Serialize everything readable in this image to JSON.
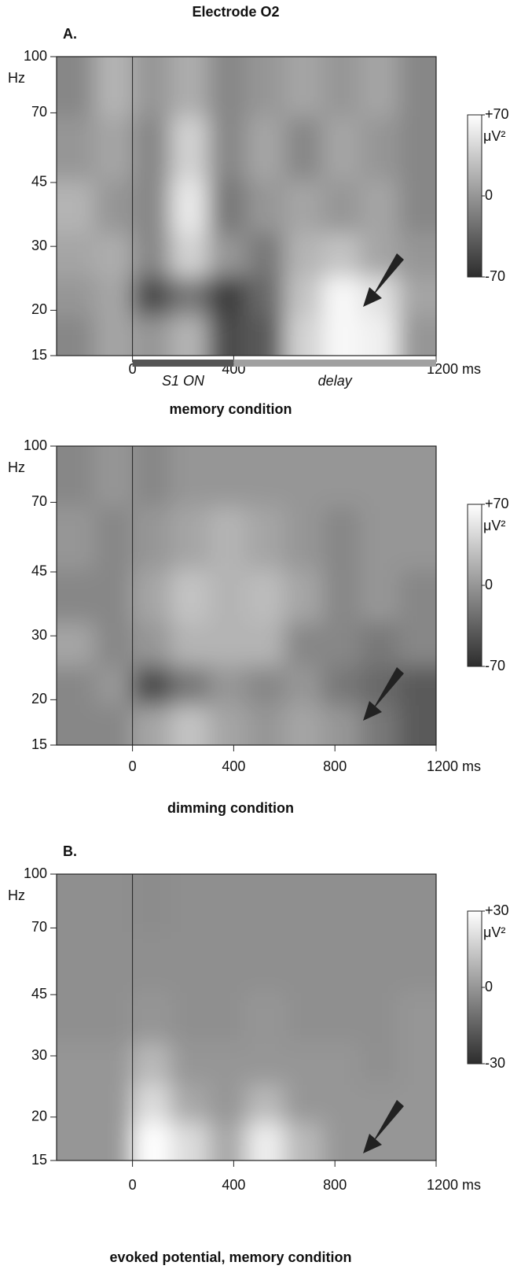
{
  "figure": {
    "title": "Electrode O2",
    "panel_labels": [
      "A.",
      "B."
    ]
  },
  "chart_data": [
    {
      "type": "heatmap",
      "caption": "memory condition",
      "y_unit": "Hz",
      "log_y": true,
      "xlim": [
        -300,
        1200
      ],
      "ylim": [
        15,
        100
      ],
      "xticks": [
        0,
        400,
        {
          "value": 1200,
          "label": "1200 ms"
        }
      ],
      "yticks": [
        100,
        70,
        45,
        30,
        20,
        15
      ],
      "x": [
        -225,
        -75,
        75,
        225,
        375,
        525,
        675,
        825,
        975,
        1125
      ],
      "y": [
        17,
        22,
        28,
        38,
        55,
        85
      ],
      "z": [
        [
          -10,
          10,
          0,
          20,
          -50,
          -40,
          40,
          65,
          60,
          0
        ],
        [
          0,
          10,
          -50,
          -20,
          -60,
          -30,
          30,
          65,
          50,
          10
        ],
        [
          10,
          15,
          -10,
          40,
          0,
          -20,
          20,
          30,
          10,
          0
        ],
        [
          20,
          0,
          -10,
          55,
          -20,
          0,
          10,
          0,
          10,
          -10
        ],
        [
          0,
          10,
          -10,
          40,
          -10,
          10,
          -10,
          10,
          0,
          -10
        ],
        [
          -10,
          20,
          0,
          15,
          -10,
          0,
          10,
          0,
          10,
          -10
        ]
      ],
      "zlim": [
        -70,
        70
      ],
      "cticks": [
        {
          "value": 70,
          "label": "+70"
        },
        0,
        -70
      ],
      "cbar_unit": "μV²",
      "onset": 0,
      "epochs": [
        {
          "label": "S1 ON",
          "start": 0,
          "end": 400,
          "color": "#555555"
        },
        {
          "label": "delay",
          "start": 400,
          "end": 1200,
          "color": "#a0a0a0"
        }
      ]
    },
    {
      "type": "heatmap",
      "caption": "dimming condition",
      "y_unit": "Hz",
      "log_y": true,
      "xlim": [
        -300,
        1200
      ],
      "ylim": [
        15,
        100
      ],
      "xticks": [
        0,
        400,
        800,
        {
          "value": 1200,
          "label": "1200 ms"
        }
      ],
      "yticks": [
        100,
        70,
        45,
        30,
        20,
        15
      ],
      "x": [
        -225,
        -75,
        75,
        225,
        375,
        525,
        675,
        825,
        975,
        1125
      ],
      "y": [
        17,
        22,
        28,
        38,
        55,
        85
      ],
      "z": [
        [
          -10,
          -10,
          10,
          30,
          10,
          0,
          10,
          0,
          -20,
          -40
        ],
        [
          -10,
          0,
          -50,
          -20,
          0,
          -10,
          0,
          -20,
          -30,
          -40
        ],
        [
          10,
          -10,
          0,
          20,
          20,
          20,
          -10,
          -10,
          -20,
          -10
        ],
        [
          -10,
          -10,
          10,
          30,
          20,
          25,
          10,
          -10,
          0,
          -10
        ],
        [
          0,
          -10,
          0,
          10,
          20,
          10,
          0,
          -10,
          0,
          0
        ],
        [
          -10,
          0,
          -10,
          0,
          0,
          0,
          0,
          0,
          0,
          0
        ]
      ],
      "zlim": [
        -70,
        70
      ],
      "cticks": [
        {
          "value": 70,
          "label": "+70"
        },
        0,
        -70
      ],
      "cbar_unit": "μV²",
      "onset": 0
    },
    {
      "type": "heatmap",
      "caption": "evoked potential, memory condition",
      "y_unit": "Hz",
      "log_y": true,
      "xlim": [
        -300,
        1200
      ],
      "ylim": [
        15,
        100
      ],
      "xticks": [
        0,
        400,
        800,
        {
          "value": 1200,
          "label": "1200 ms"
        }
      ],
      "yticks": [
        100,
        70,
        45,
        30,
        20,
        15
      ],
      "x": [
        -225,
        -75,
        75,
        225,
        375,
        525,
        675,
        825,
        975,
        1125
      ],
      "y": [
        17,
        22,
        28,
        38,
        55,
        85
      ],
      "z": [
        [
          0,
          0,
          30,
          20,
          5,
          25,
          10,
          0,
          0,
          0
        ],
        [
          0,
          0,
          20,
          5,
          0,
          10,
          0,
          0,
          0,
          0
        ],
        [
          0,
          0,
          10,
          0,
          0,
          0,
          0,
          0,
          -2,
          0
        ],
        [
          -2,
          -2,
          0,
          -2,
          -2,
          0,
          -2,
          -2,
          -2,
          0
        ],
        [
          -2,
          -2,
          -2,
          -2,
          -2,
          -2,
          -2,
          -2,
          -2,
          -2
        ],
        [
          -2,
          -2,
          -3,
          -2,
          -2,
          -2,
          -2,
          -2,
          -2,
          -2
        ]
      ],
      "zlim": [
        -30,
        30
      ],
      "cticks": [
        {
          "value": 30,
          "label": "+30"
        },
        0,
        -30
      ],
      "cbar_unit": "μV²",
      "onset": 0
    }
  ]
}
